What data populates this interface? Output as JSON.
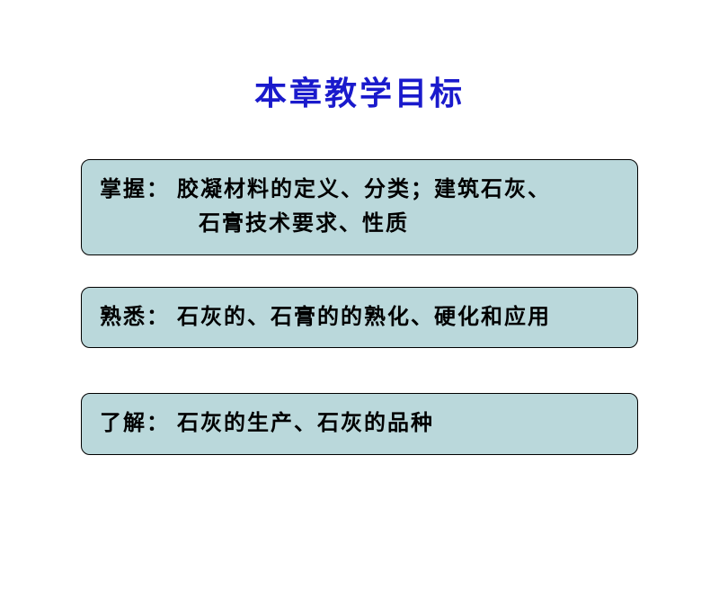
{
  "colors": {
    "title_color": "#1a1acc",
    "box_bg": "#bad8db",
    "box_text": "#000000",
    "background": "#ffffff"
  },
  "title": "本章教学目标",
  "objectives": [
    {
      "label": "掌握：",
      "line1": "胶凝材料的定义、分类；建筑石灰、",
      "line2": "石膏技术要求、性质"
    },
    {
      "label": "熟悉：",
      "text": "石灰的、石膏的的熟化、硬化和应用"
    },
    {
      "label": "了解：",
      "text": "石灰的生产、石灰的品种"
    }
  ],
  "typography": {
    "title_fontsize": 36,
    "box_fontsize": 24,
    "font_family": "KaiTi"
  }
}
